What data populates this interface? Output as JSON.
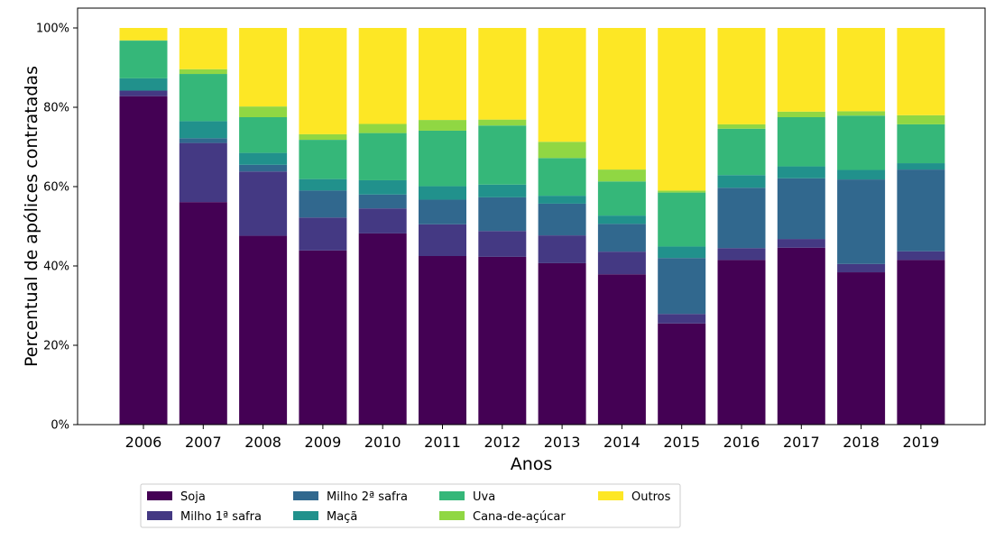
{
  "chart_data": {
    "type": "bar",
    "stacked": true,
    "title": "",
    "xlabel": "Anos",
    "ylabel": "Percentual de apólices contratadas",
    "ylim": [
      0,
      1.05
    ],
    "yticks": [
      0,
      0.2,
      0.4,
      0.6,
      0.8,
      1.0
    ],
    "ytick_labels": [
      "0%",
      "20%",
      "40%",
      "60%",
      "80%",
      "100%"
    ],
    "categories": [
      "2006",
      "2007",
      "2008",
      "2009",
      "2010",
      "2011",
      "2012",
      "2013",
      "2014",
      "2015",
      "2016",
      "2017",
      "2018",
      "2019"
    ],
    "legend_position": "below-left",
    "grid": false,
    "series": [
      {
        "name": "Soja",
        "color": "#440154",
        "values": [
          0.828,
          0.561,
          0.476,
          0.439,
          0.482,
          0.425,
          0.423,
          0.407,
          0.379,
          0.255,
          0.415,
          0.446,
          0.384,
          0.415
        ]
      },
      {
        "name": "Milho 1ª safra",
        "color": "#443983",
        "values": [
          0.014,
          0.149,
          0.162,
          0.083,
          0.063,
          0.08,
          0.065,
          0.07,
          0.057,
          0.024,
          0.03,
          0.022,
          0.021,
          0.022
        ]
      },
      {
        "name": "Milho 2ª safra",
        "color": "#31688e",
        "values": [
          0.0,
          0.012,
          0.017,
          0.068,
          0.035,
          0.062,
          0.085,
          0.08,
          0.07,
          0.141,
          0.152,
          0.153,
          0.213,
          0.206
        ]
      },
      {
        "name": "Maçã",
        "color": "#21918c",
        "values": [
          0.031,
          0.043,
          0.03,
          0.029,
          0.036,
          0.034,
          0.032,
          0.02,
          0.021,
          0.029,
          0.032,
          0.03,
          0.024,
          0.016
        ]
      },
      {
        "name": "Uva",
        "color": "#35b779",
        "values": [
          0.095,
          0.119,
          0.09,
          0.099,
          0.119,
          0.14,
          0.149,
          0.095,
          0.086,
          0.136,
          0.117,
          0.124,
          0.137,
          0.098
        ]
      },
      {
        "name": "Cana-de-açúcar",
        "color": "#90d743",
        "values": [
          0.001,
          0.012,
          0.027,
          0.014,
          0.023,
          0.027,
          0.015,
          0.041,
          0.03,
          0.005,
          0.011,
          0.014,
          0.011,
          0.023
        ]
      },
      {
        "name": "Outros",
        "color": "#fde725",
        "values": [
          0.031,
          0.104,
          0.198,
          0.268,
          0.242,
          0.232,
          0.231,
          0.287,
          0.357,
          0.41,
          0.243,
          0.211,
          0.21,
          0.22
        ]
      }
    ]
  }
}
